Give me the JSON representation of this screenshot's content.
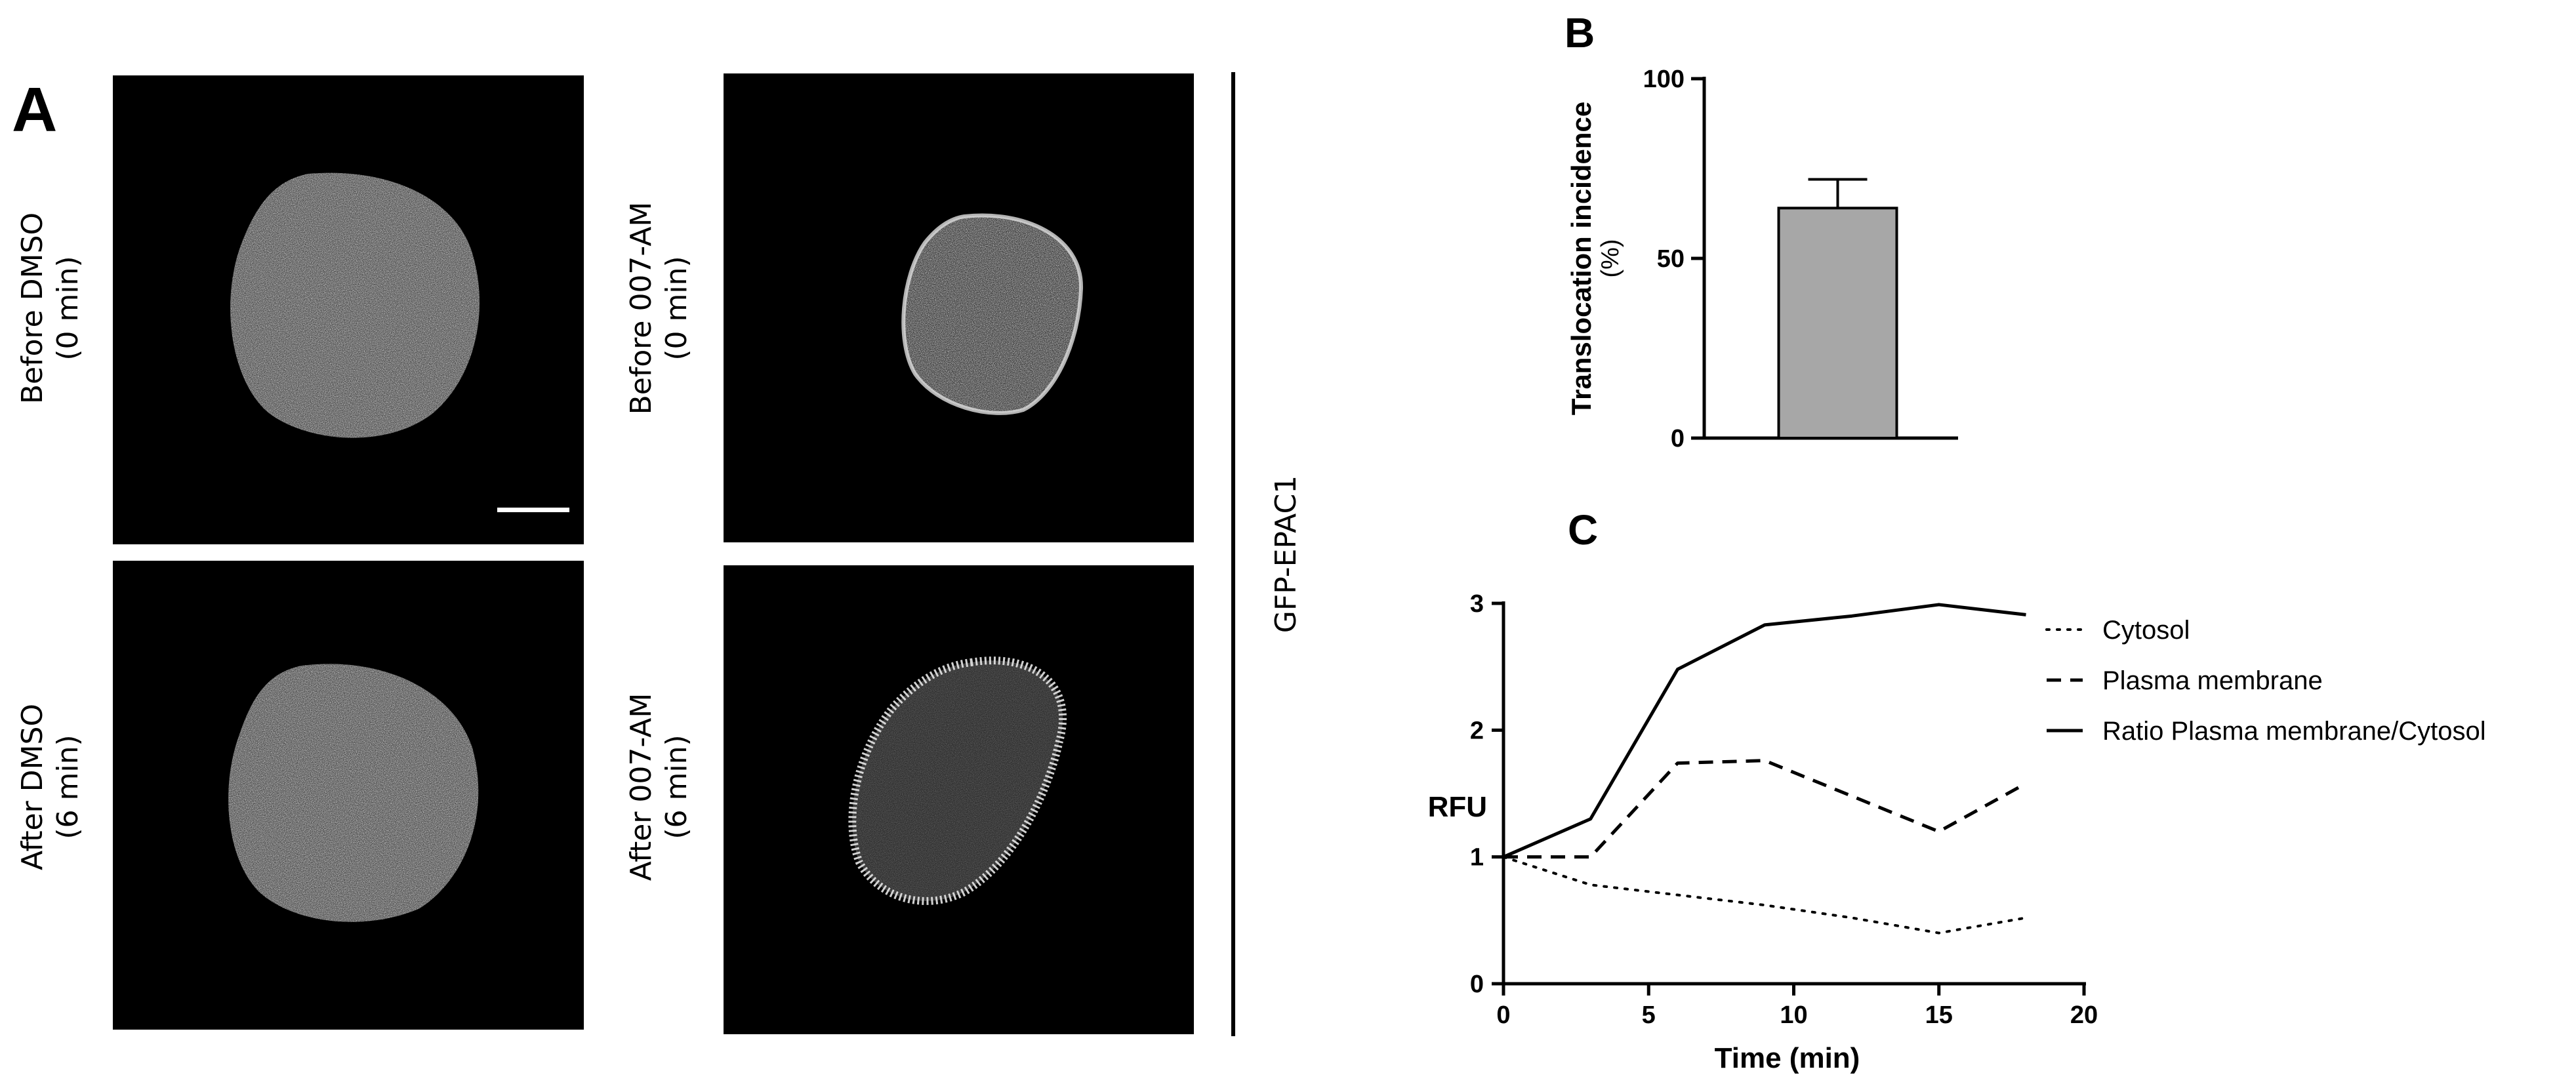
{
  "panel_a": {
    "letter": "A",
    "images": [
      {
        "label_line1": "Before DMSO",
        "label_line2": "(0 min)"
      },
      {
        "label_line1": "After DMSO",
        "label_line2": "(6 min)"
      },
      {
        "label_line1": "Before 007-AM",
        "label_line2": "(0 min)"
      },
      {
        "label_line1": "After 007-AM",
        "label_line2": "(6 min)"
      }
    ],
    "side_label": "GFP-EPAC1",
    "colors": {
      "image_bg": "#000000",
      "cell": "#c8c8c8"
    }
  },
  "chart_data": [
    {
      "panel": "B",
      "type": "bar",
      "ylabel": "Translocation incidence",
      "ylabel_unit": "(%)",
      "ylim": [
        0,
        100
      ],
      "yticks": [
        0,
        50,
        100
      ],
      "categories": [
        ""
      ],
      "values": [
        64
      ],
      "error": [
        8
      ],
      "bar_color": "#a7a7a7",
      "grid": false
    },
    {
      "panel": "C",
      "type": "line",
      "xlabel": "Time (min)",
      "ylabel": "RFU",
      "xlim": [
        0,
        20
      ],
      "ylim": [
        0,
        3
      ],
      "xticks": [
        0,
        5,
        10,
        15,
        20
      ],
      "yticks": [
        0,
        1,
        2,
        3
      ],
      "grid": false,
      "legend_position": "right",
      "series": [
        {
          "name": "Cytosol",
          "style": "dotted",
          "x": [
            0,
            3,
            6,
            9,
            12,
            15,
            18
          ],
          "y": [
            1.0,
            0.78,
            0.7,
            0.62,
            0.52,
            0.4,
            0.52
          ]
        },
        {
          "name": "Plasma membrane",
          "style": "dashed",
          "x": [
            0,
            3,
            6,
            9,
            12,
            15,
            18
          ],
          "y": [
            1.0,
            1.0,
            1.74,
            1.76,
            1.48,
            1.2,
            1.58
          ]
        },
        {
          "name": "Ratio Plasma membrane/Cytosol",
          "style": "solid",
          "x": [
            0,
            3,
            6,
            9,
            12,
            15,
            18
          ],
          "y": [
            1.0,
            1.3,
            2.48,
            2.83,
            2.9,
            2.99,
            2.91
          ]
        }
      ]
    }
  ]
}
